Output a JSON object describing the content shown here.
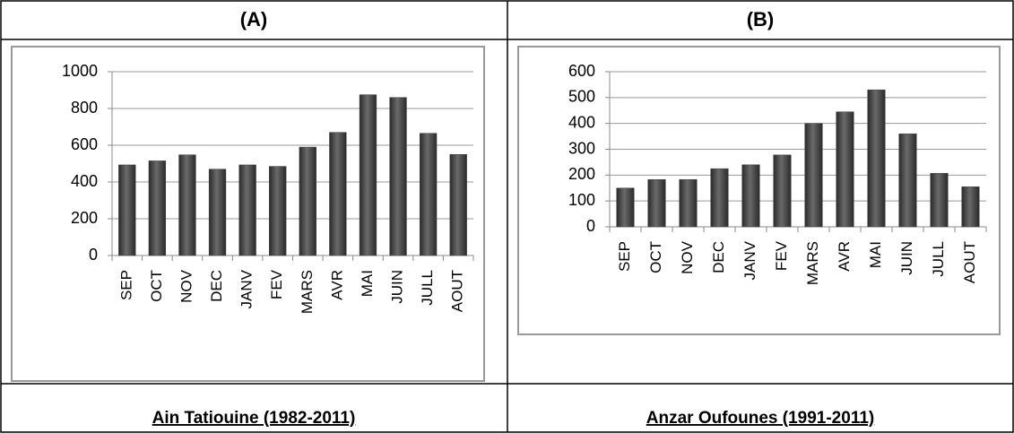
{
  "chart_data": [
    {
      "type": "bar",
      "title": "(A)",
      "caption": "Ain Tatiouine (1982-2011)",
      "categories": [
        "SEP",
        "OCT",
        "NOV",
        "DEC",
        "JANV",
        "FEV",
        "MARS",
        "AVR",
        "MAI",
        "JUIN",
        "JULL",
        "AOUT"
      ],
      "values": [
        493,
        515,
        548,
        470,
        493,
        485,
        590,
        670,
        875,
        860,
        665,
        550
      ],
      "color": "#404040",
      "ylim": [
        0,
        1000
      ],
      "yticks": [
        0,
        200,
        400,
        600,
        800,
        1000
      ],
      "grid": true
    },
    {
      "type": "bar",
      "title": "(B)",
      "caption": "Anzar Oufounes (1991-2011)",
      "categories": [
        "SEP",
        "OCT",
        "NOV",
        "DEC",
        "JANV",
        "FEV",
        "MARS",
        "AVR",
        "MAI",
        "JUIN",
        "JULL",
        "AOUT"
      ],
      "values": [
        150,
        183,
        183,
        225,
        240,
        278,
        400,
        445,
        530,
        360,
        207,
        155
      ],
      "color": "#404040",
      "ylim": [
        0,
        600
      ],
      "yticks": [
        0,
        100,
        200,
        300,
        400,
        500,
        600
      ],
      "grid": true
    }
  ]
}
